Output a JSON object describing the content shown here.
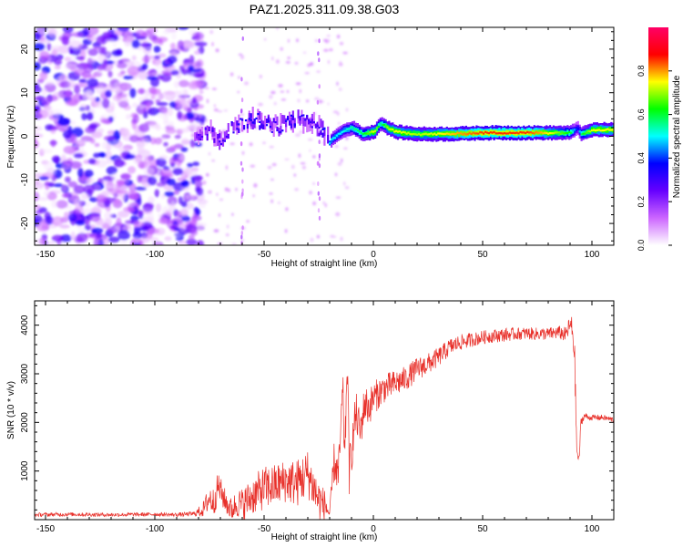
{
  "figure": {
    "title": "PAZ1.2025.311.09.38.G03"
  },
  "chart_data": [
    {
      "type": "heatmap",
      "title": "PAZ1.2025.311.09.38.G03",
      "xlabel": "Height of straight line (km)",
      "ylabel": "Frequency (Hz)",
      "xlim": [
        -155,
        110
      ],
      "ylim": [
        -25,
        25
      ],
      "x_ticks": [
        -150,
        -100,
        -50,
        0,
        50,
        100
      ],
      "y_ticks": [
        -20,
        -10,
        0,
        10,
        20
      ],
      "colorbar": {
        "label": "Normalized spectral amplitude",
        "range": [
          0,
          1
        ],
        "ticks": [
          "0.0",
          "0.2",
          "0.4",
          "0.6",
          "0.8"
        ],
        "colormap": [
          "#ffffff",
          "#cc66ff",
          "#6600ff",
          "#0000ff",
          "#00ffff",
          "#00ff00",
          "#ffff00",
          "#ff0000",
          "#ff0066"
        ]
      },
      "ridge": {
        "x": [
          -82,
          -75,
          -70,
          -65,
          -60,
          -55,
          -50,
          -45,
          -40,
          -35,
          -30,
          -25,
          -20,
          -15,
          -10,
          -5,
          0,
          3,
          6,
          10,
          20,
          30,
          40,
          50,
          60,
          70,
          80,
          90,
          93,
          95,
          100,
          110
        ],
        "y": [
          0,
          1,
          -1,
          2,
          3,
          4,
          3,
          2,
          3,
          4,
          3,
          2,
          -1,
          1,
          2,
          0.5,
          1,
          3,
          2,
          1,
          0.5,
          0.5,
          0.6,
          0.8,
          0.8,
          0.8,
          0.8,
          0.8,
          2,
          0.5,
          1.5,
          1.5
        ],
        "amplitude": [
          0.25,
          0.3,
          0.3,
          0.3,
          0.35,
          0.35,
          0.35,
          0.3,
          0.35,
          0.35,
          0.3,
          0.3,
          0.5,
          0.5,
          0.55,
          0.6,
          0.75,
          0.55,
          0.7,
          0.75,
          0.7,
          0.75,
          0.8,
          0.85,
          0.85,
          0.85,
          0.75,
          0.6,
          0.35,
          0.6,
          0.75,
          0.75
        ]
      },
      "noise_region_x": [
        -155,
        -82
      ],
      "noise_amplitude_max": 0.35
    },
    {
      "type": "line",
      "xlabel": "Height of straight line (km)",
      "ylabel": "SNR (10 * v/v)",
      "xlim": [
        -155,
        110
      ],
      "ylim": [
        0,
        4500
      ],
      "x_ticks": [
        -150,
        -100,
        -50,
        0,
        50,
        100
      ],
      "y_ticks": [
        1000,
        2000,
        3000,
        4000
      ],
      "series": [
        {
          "name": "SNR",
          "color": "#e8302a",
          "x": [
            -155,
            -140,
            -120,
            -100,
            -90,
            -82,
            -78,
            -75,
            -73,
            -71,
            -68,
            -65,
            -62,
            -60,
            -55,
            -50,
            -45,
            -40,
            -35,
            -30,
            -25,
            -22,
            -20,
            -18,
            -16,
            -14,
            -13,
            -12,
            -11,
            -10,
            -8,
            -6,
            -4,
            -2,
            0,
            5,
            10,
            15,
            20,
            25,
            30,
            35,
            40,
            45,
            50,
            55,
            60,
            65,
            70,
            75,
            80,
            85,
            88,
            90,
            91,
            92,
            93,
            94,
            95,
            96,
            97,
            98,
            100,
            105,
            110
          ],
          "y": [
            100,
            110,
            100,
            110,
            100,
            120,
            200,
            450,
            350,
            700,
            400,
            200,
            350,
            300,
            500,
            650,
            700,
            800,
            750,
            950,
            400,
            300,
            100,
            1200,
            900,
            2600,
            1200,
            3400,
            1000,
            1400,
            2200,
            1800,
            2400,
            2300,
            2500,
            2700,
            2800,
            2900,
            3100,
            3200,
            3350,
            3550,
            3650,
            3700,
            3750,
            3780,
            3800,
            3820,
            3830,
            3820,
            3820,
            3850,
            3800,
            4000,
            3900,
            3500,
            1500,
            1150,
            2000,
            2100,
            2150,
            2100,
            2100,
            2100,
            2050
          ],
          "noise_amplitude": [
            40,
            40,
            40,
            40,
            40,
            50,
            150,
            300,
            300,
            300,
            250,
            250,
            300,
            350,
            400,
            450,
            450,
            450,
            500,
            500,
            450,
            300,
            100,
            400,
            400,
            500,
            500,
            500,
            500,
            450,
            450,
            400,
            400,
            380,
            350,
            300,
            280,
            260,
            240,
            220,
            200,
            180,
            160,
            150,
            140,
            140,
            140,
            130,
            130,
            130,
            130,
            140,
            160,
            200,
            300,
            400,
            200,
            150,
            100,
            80,
            70,
            60,
            60,
            60,
            60
          ]
        }
      ]
    }
  ]
}
